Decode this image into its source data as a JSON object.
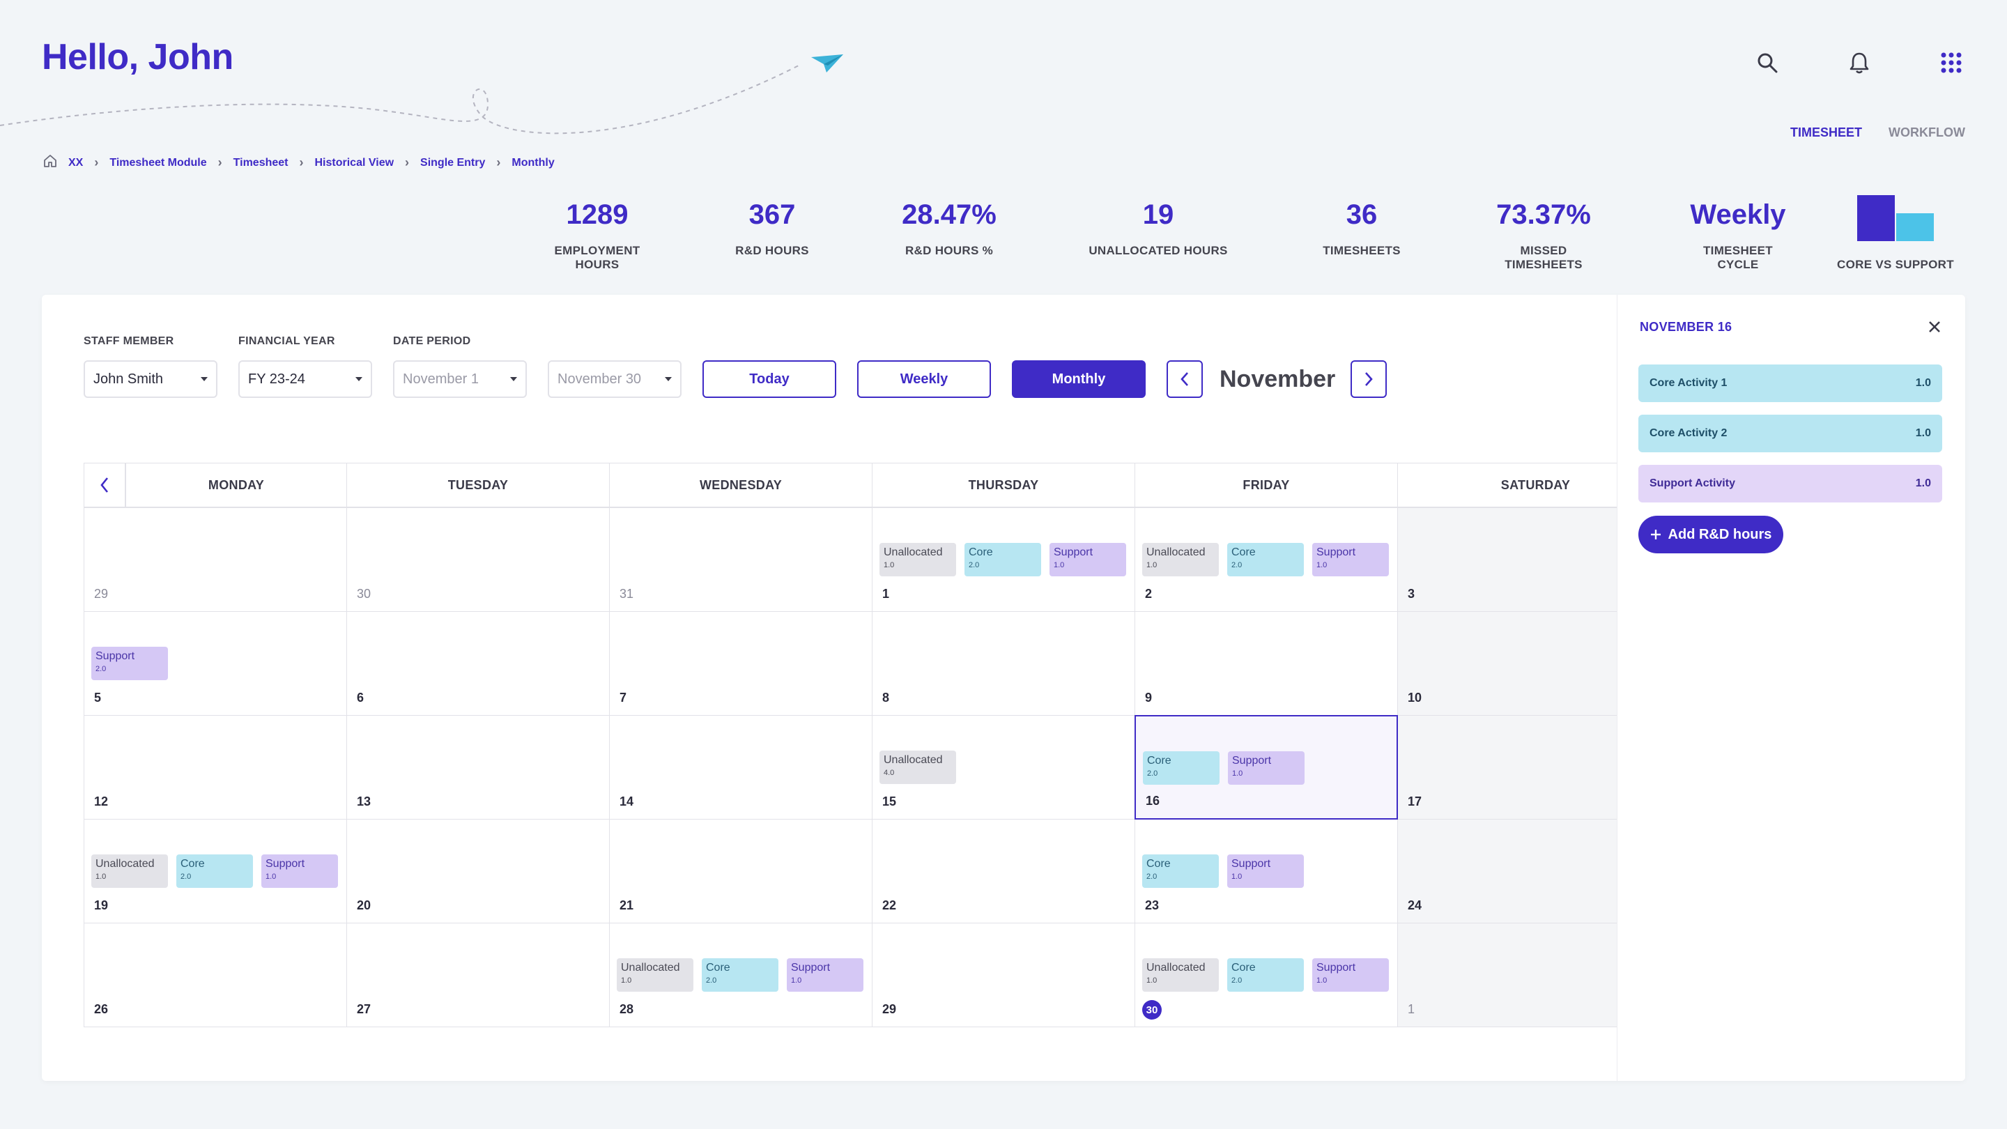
{
  "greeting": "Hello, John",
  "top_tabs": [
    "TIMESHEET",
    "WORKFLOW"
  ],
  "icons": {
    "search": "search-icon",
    "bell": "bell-icon",
    "apps": "apps-grid-icon",
    "home": "home-icon",
    "plane": "paper-plane-icon"
  },
  "breadcrumb": [
    "XX",
    "Timesheet Module",
    "Timesheet",
    "Historical View",
    "Single Entry",
    "Monthly"
  ],
  "stats": [
    {
      "value": "1289",
      "label_lines": [
        "EMPLOYMENT",
        "HOURS"
      ]
    },
    {
      "value": "367",
      "label_lines": [
        "R&D HOURS"
      ]
    },
    {
      "value": "28.47%",
      "label_lines": [
        "R&D HOURS %"
      ]
    },
    {
      "value": "19",
      "label_lines": [
        "UNALLOCATED HOURS"
      ]
    },
    {
      "value": "36",
      "label_lines": [
        "TIMESHEETS"
      ]
    },
    {
      "value": "73.37%",
      "label_lines": [
        "MISSED",
        "TIMESHEETS"
      ]
    },
    {
      "value": "Weekly",
      "label_lines": [
        "TIMESHEET",
        "CYCLE"
      ]
    }
  ],
  "core_vs_support": {
    "label": "CORE VS SUPPORT",
    "core_color": "#3f2bc6",
    "support_color": "#4cc3e8"
  },
  "filters": {
    "staff_label": "STAFF MEMBER",
    "staff_value": "John Smith",
    "fy_label": "FINANCIAL YEAR",
    "fy_value": "FY 23-24",
    "period_label": "DATE PERIOD",
    "period_from": "November 1",
    "period_to": "November 30"
  },
  "view_buttons": {
    "today": "Today",
    "weekly": "Weekly",
    "monthly": "Monthly"
  },
  "month_title": "November",
  "weekdays": [
    "MONDAY",
    "TUESDAY",
    "WEDNESDAY",
    "THURSDAY",
    "FRIDAY",
    "SATURDAY"
  ],
  "calendar": [
    [
      {
        "day": "29",
        "other": true,
        "chips": []
      },
      {
        "day": "30",
        "other": true,
        "chips": []
      },
      {
        "day": "31",
        "other": true,
        "chips": []
      },
      {
        "day": "1",
        "chips": [
          [
            "unallocated",
            "Unallocated",
            "1.0"
          ],
          [
            "core",
            "Core",
            "2.0"
          ],
          [
            "support",
            "Support",
            "1.0"
          ]
        ]
      },
      {
        "day": "2",
        "chips": [
          [
            "unallocated",
            "Unallocated",
            "1.0"
          ],
          [
            "core",
            "Core",
            "2.0"
          ],
          [
            "support",
            "Support",
            "1.0"
          ]
        ]
      },
      {
        "day": "3",
        "chips": []
      }
    ],
    [
      {
        "day": "5",
        "chips": [
          [
            "support",
            "Support",
            "2.0"
          ]
        ]
      },
      {
        "day": "6",
        "chips": []
      },
      {
        "day": "7",
        "chips": []
      },
      {
        "day": "8",
        "chips": []
      },
      {
        "day": "9",
        "chips": []
      },
      {
        "day": "10",
        "chips": []
      }
    ],
    [
      {
        "day": "12",
        "chips": []
      },
      {
        "day": "13",
        "chips": []
      },
      {
        "day": "14",
        "chips": []
      },
      {
        "day": "15",
        "chips": [
          [
            "unallocated",
            "Unallocated",
            "4.0"
          ]
        ]
      },
      {
        "day": "16",
        "selected": true,
        "chips": [
          [
            "core",
            "Core",
            "2.0"
          ],
          [
            "support",
            "Support",
            "1.0"
          ]
        ]
      },
      {
        "day": "17",
        "chips": []
      }
    ],
    [
      {
        "day": "19",
        "chips": [
          [
            "unallocated",
            "Unallocated",
            "1.0"
          ],
          [
            "core",
            "Core",
            "2.0"
          ],
          [
            "support",
            "Support",
            "1.0"
          ]
        ]
      },
      {
        "day": "20",
        "chips": []
      },
      {
        "day": "21",
        "chips": []
      },
      {
        "day": "22",
        "chips": []
      },
      {
        "day": "23",
        "chips": [
          [
            "core",
            "Core",
            "2.0"
          ],
          [
            "support",
            "Support",
            "1.0"
          ]
        ]
      },
      {
        "day": "24",
        "chips": []
      }
    ],
    [
      {
        "day": "26",
        "chips": []
      },
      {
        "day": "27",
        "chips": []
      },
      {
        "day": "28",
        "chips": [
          [
            "unallocated",
            "Unallocated",
            "1.0"
          ],
          [
            "core",
            "Core",
            "2.0"
          ],
          [
            "support",
            "Support",
            "1.0"
          ]
        ]
      },
      {
        "day": "29",
        "chips": []
      },
      {
        "day": "30",
        "today": true,
        "chips": [
          [
            "unallocated",
            "Unallocated",
            "1.0"
          ],
          [
            "core",
            "Core",
            "2.0"
          ],
          [
            "support",
            "Support",
            "1.0"
          ]
        ]
      },
      {
        "day": "1",
        "other": true,
        "chips": []
      }
    ]
  ],
  "panel": {
    "title": "NOVEMBER 16",
    "activities": [
      {
        "type": "core",
        "name": "Core Activity 1",
        "hours": "1.0"
      },
      {
        "type": "core",
        "name": "Core Activity 2",
        "hours": "1.0"
      },
      {
        "type": "support",
        "name": "Support Activity",
        "hours": "1.0"
      }
    ],
    "add_label": "Add R&D hours"
  }
}
